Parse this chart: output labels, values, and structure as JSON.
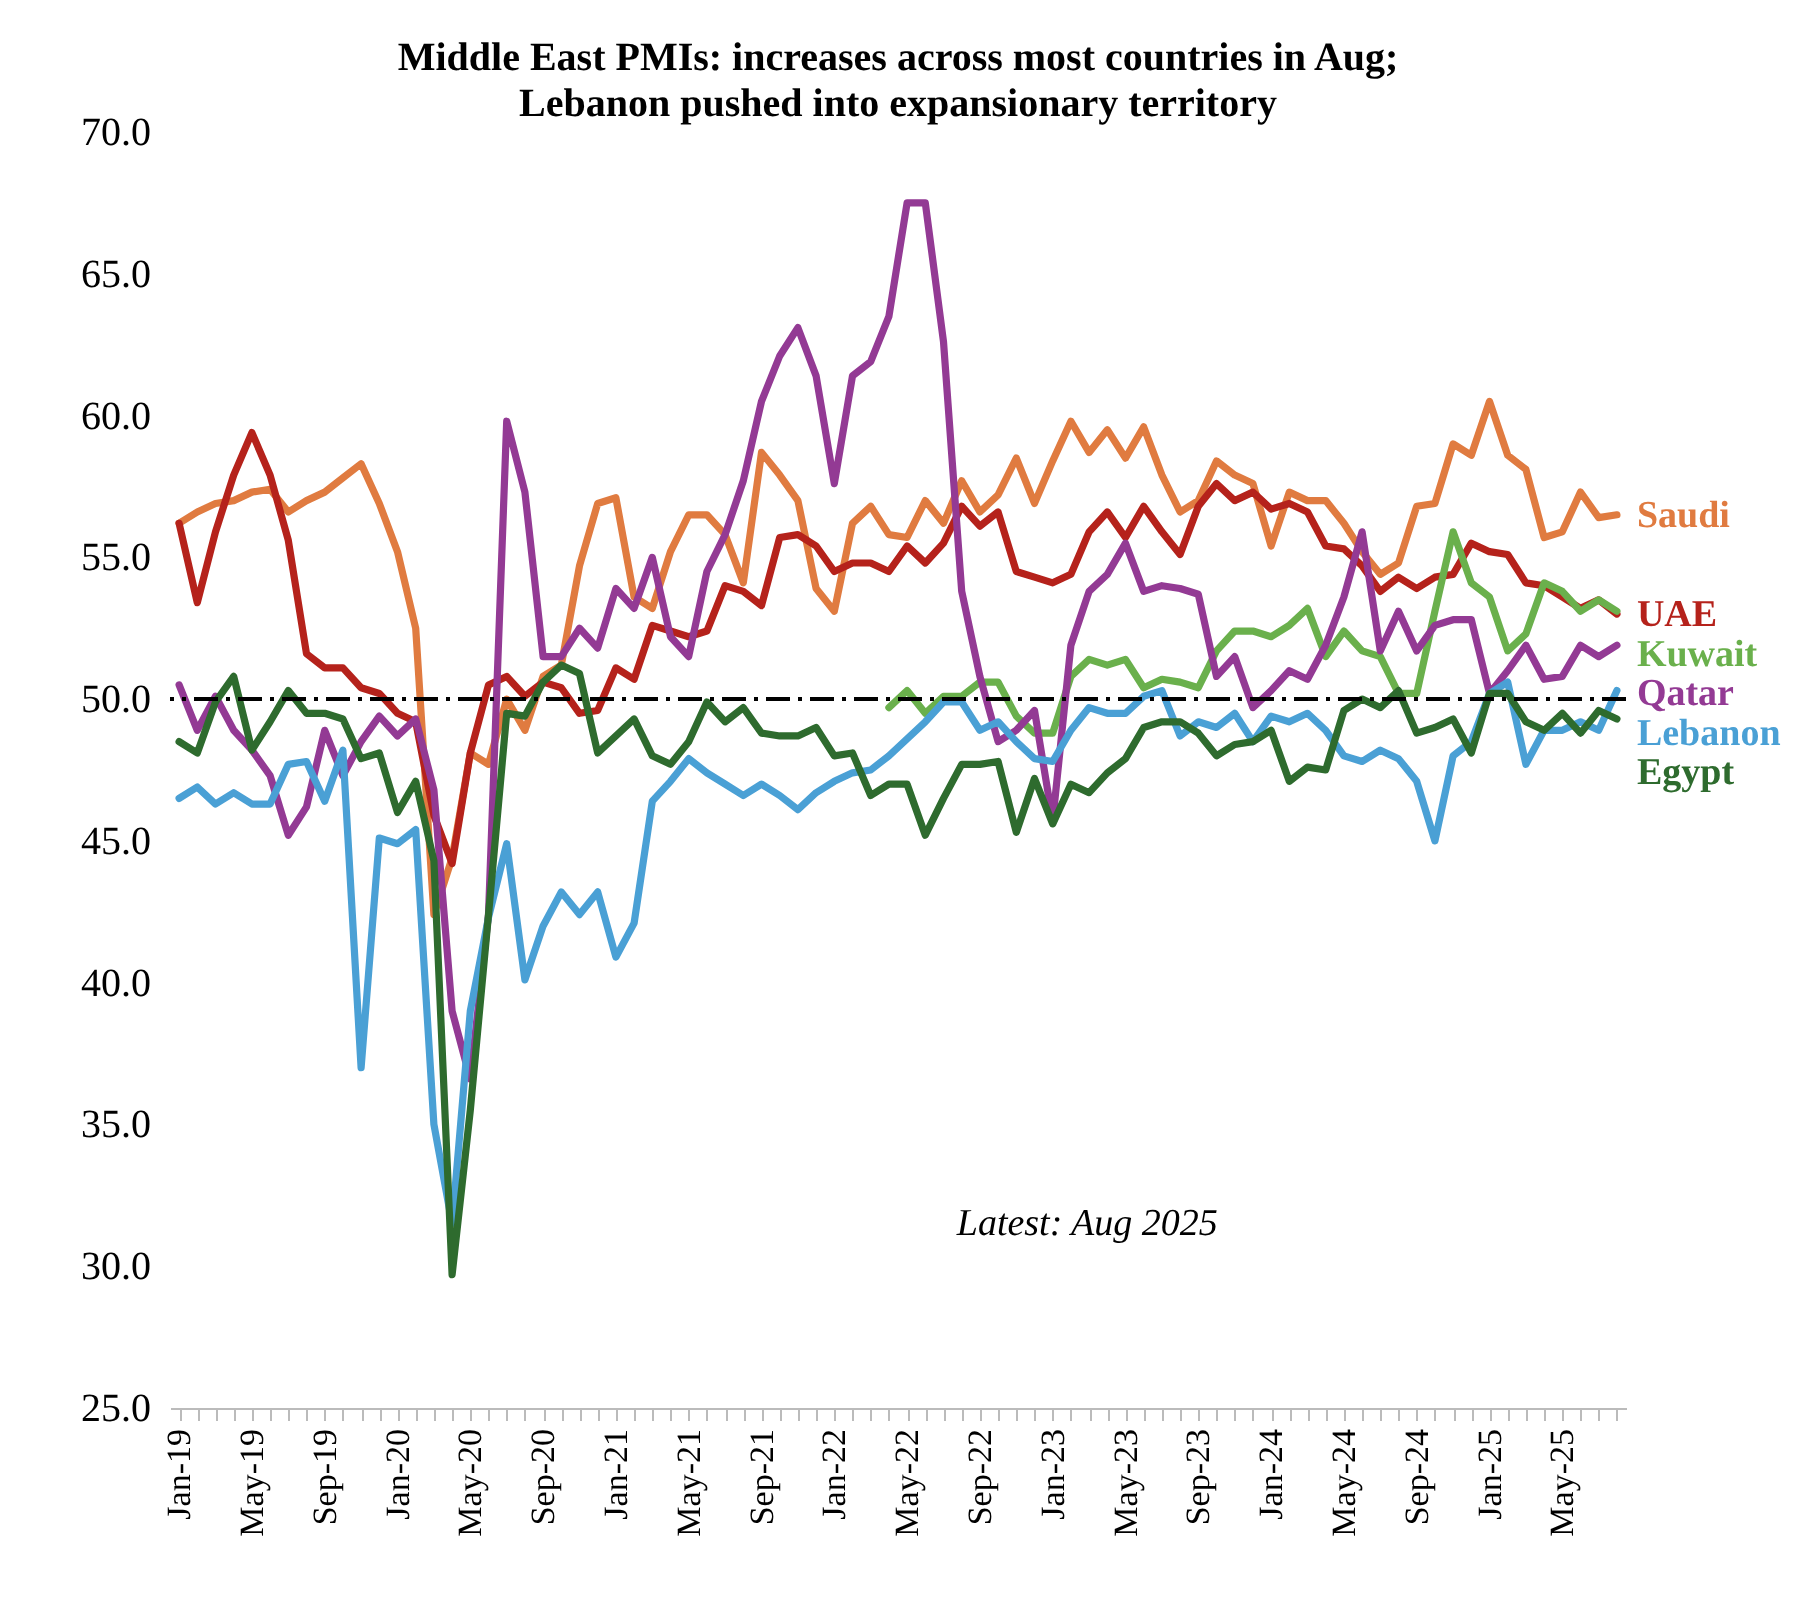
{
  "chart_data": {
    "type": "line",
    "title": "Middle East PMIs: increases across most countries in Aug;\nLebanon pushed into expansionary territory",
    "categories": [
      "Jan-19",
      null,
      null,
      null,
      "May-19",
      null,
      null,
      null,
      "Sep-19",
      null,
      null,
      null,
      "Jan-20",
      null,
      null,
      null,
      "May-20",
      null,
      null,
      null,
      "Sep-20",
      null,
      null,
      null,
      "Jan-21",
      null,
      null,
      null,
      "May-21",
      null,
      null,
      null,
      "Sep-21",
      null,
      null,
      null,
      "Jan-22",
      null,
      null,
      null,
      "May-22",
      null,
      null,
      null,
      "Sep-22",
      null,
      null,
      null,
      "Jan-23",
      null,
      null,
      null,
      "May-23",
      null,
      null,
      null,
      "Sep-23",
      null,
      null,
      null,
      "Jan-24",
      null,
      null,
      null,
      "May-24",
      null,
      null,
      null,
      "Sep-24",
      null,
      null,
      null,
      "Jan-25",
      null,
      null,
      null,
      "May-25",
      null,
      null,
      null
    ],
    "ylim": [
      25,
      70
    ],
    "yticks": [
      {
        "value": 25,
        "label": "25.0"
      },
      {
        "value": 30,
        "label": "30.0"
      },
      {
        "value": 35,
        "label": "35.0"
      },
      {
        "value": 40,
        "label": "40.0"
      },
      {
        "value": 45,
        "label": "45.0"
      },
      {
        "value": 50,
        "label": "50.0"
      },
      {
        "value": 55,
        "label": "55.0"
      },
      {
        "value": 60,
        "label": "60.0"
      },
      {
        "value": 65,
        "label": "65.0"
      },
      {
        "value": 70,
        "label": "70.0"
      }
    ],
    "ref_lines": [
      {
        "axis": "y",
        "value": 50,
        "color": "#000000",
        "line_style": "dashdot"
      }
    ],
    "annotations": [
      "Latest: Aug 2025"
    ],
    "series": [
      {
        "name": "Saudi",
        "color": "#e07b40",
        "values": [
          56.2,
          56.6,
          56.9,
          57.0,
          57.3,
          57.4,
          56.6,
          57.0,
          57.3,
          57.8,
          58.3,
          56.9,
          55.2,
          52.5,
          42.4,
          44.4,
          48.1,
          47.7,
          50.0,
          48.9,
          50.8,
          51.2,
          54.7,
          56.9,
          57.1,
          53.6,
          53.2,
          55.2,
          56.5,
          56.5,
          55.8,
          54.1,
          58.7,
          57.9,
          57.0,
          53.9,
          53.1,
          56.2,
          56.8,
          55.8,
          55.7,
          57.0,
          56.2,
          57.7,
          56.6,
          57.2,
          58.5,
          56.9,
          58.4,
          59.8,
          58.7,
          59.5,
          58.5,
          59.6,
          57.9,
          56.6,
          57.0,
          58.4,
          57.9,
          57.6,
          55.4,
          57.3,
          57.0,
          57.0,
          56.2,
          55.2,
          54.4,
          54.8,
          56.8,
          56.9,
          59.0,
          58.6,
          60.5,
          58.6,
          58.1,
          55.7,
          55.9,
          57.3,
          56.4,
          56.5
        ]
      },
      {
        "name": "UAE",
        "color": "#b5221b",
        "values": [
          56.2,
          53.4,
          55.9,
          57.9,
          59.4,
          57.9,
          55.6,
          51.6,
          51.1,
          51.1,
          50.4,
          50.2,
          49.5,
          49.2,
          45.9,
          44.2,
          48.1,
          50.5,
          50.8,
          50.1,
          50.6,
          50.4,
          49.5,
          49.6,
          51.1,
          50.7,
          52.6,
          52.4,
          52.2,
          52.4,
          54.0,
          53.8,
          53.3,
          55.7,
          55.8,
          55.4,
          54.5,
          54.8,
          54.8,
          54.5,
          55.4,
          54.8,
          55.5,
          56.8,
          56.1,
          56.6,
          54.5,
          54.3,
          54.1,
          54.4,
          55.9,
          56.6,
          55.7,
          56.8,
          55.9,
          55.1,
          56.8,
          57.6,
          57.0,
          57.3,
          56.7,
          56.9,
          56.6,
          55.4,
          55.3,
          54.7,
          53.8,
          54.3,
          53.9,
          54.3,
          54.4,
          55.5,
          55.2,
          55.1,
          54.1,
          54.0,
          53.6,
          53.2,
          53.5,
          53.0
        ]
      },
      {
        "name": "Kuwait",
        "color": "#6ab04c",
        "values": [
          null,
          null,
          null,
          null,
          null,
          null,
          null,
          null,
          null,
          null,
          null,
          null,
          null,
          null,
          null,
          null,
          null,
          null,
          null,
          null,
          null,
          null,
          null,
          null,
          null,
          null,
          null,
          null,
          null,
          null,
          null,
          null,
          null,
          null,
          null,
          null,
          null,
          null,
          null,
          49.7,
          50.3,
          49.5,
          50.1,
          50.1,
          50.6,
          50.6,
          49.4,
          48.8,
          48.8,
          50.8,
          51.4,
          51.2,
          51.4,
          50.4,
          50.7,
          50.6,
          50.4,
          51.7,
          52.4,
          52.4,
          52.2,
          52.6,
          53.2,
          51.5,
          52.4,
          51.7,
          51.5,
          50.2,
          50.2,
          53.1,
          55.9,
          54.1,
          53.6,
          51.7,
          52.3,
          54.1,
          53.8,
          53.1,
          53.5,
          53.1
        ]
      },
      {
        "name": "Qatar",
        "color": "#933a94",
        "values": [
          50.5,
          48.9,
          50.1,
          48.9,
          48.2,
          47.3,
          45.2,
          46.2,
          48.9,
          47.3,
          48.5,
          49.4,
          48.7,
          49.3,
          46.8,
          39.0,
          36.6,
          42.4,
          59.8,
          57.3,
          51.5,
          51.5,
          52.5,
          51.8,
          53.9,
          53.2,
          55.0,
          52.2,
          51.5,
          54.5,
          55.8,
          57.7,
          60.5,
          62.1,
          63.1,
          61.4,
          57.6,
          61.4,
          61.9,
          63.5,
          67.5,
          67.5,
          62.6,
          53.8,
          50.8,
          48.5,
          48.9,
          49.6,
          45.7,
          51.9,
          53.8,
          54.4,
          55.5,
          53.8,
          54.0,
          53.9,
          53.7,
          50.8,
          51.5,
          49.7,
          50.3,
          51.0,
          50.7,
          51.9,
          53.6,
          55.9,
          51.7,
          53.1,
          51.7,
          52.6,
          52.8,
          52.8,
          50.2,
          51.0,
          51.9,
          50.7,
          50.8,
          51.9,
          51.5,
          51.9
        ]
      },
      {
        "name": "Lebanon",
        "color": "#4aa0d5",
        "values": [
          46.5,
          46.9,
          46.3,
          46.7,
          46.3,
          46.3,
          47.7,
          47.8,
          46.4,
          48.2,
          37.0,
          45.1,
          44.9,
          45.4,
          35.0,
          31.5,
          39.0,
          42.3,
          44.9,
          40.1,
          42.0,
          43.2,
          42.4,
          43.2,
          40.9,
          42.1,
          46.4,
          47.1,
          47.9,
          47.4,
          47.0,
          46.6,
          47.0,
          46.6,
          46.1,
          46.7,
          47.1,
          47.4,
          47.5,
          48.0,
          48.6,
          49.2,
          49.9,
          49.9,
          48.9,
          49.2,
          48.5,
          47.9,
          47.8,
          48.9,
          49.7,
          49.5,
          49.5,
          50.1,
          50.3,
          48.7,
          49.2,
          49.0,
          49.5,
          48.5,
          49.4,
          49.2,
          49.5,
          48.9,
          48.0,
          47.8,
          48.2,
          47.9,
          47.1,
          45.0,
          48.0,
          48.5,
          50.2,
          50.6,
          47.7,
          48.9,
          48.9,
          49.2,
          48.9,
          50.3
        ]
      },
      {
        "name": "Egypt",
        "color": "#2e6b2e",
        "values": [
          48.5,
          48.1,
          49.9,
          50.8,
          48.2,
          49.2,
          50.3,
          49.5,
          49.5,
          49.3,
          47.9,
          48.1,
          46.0,
          47.1,
          44.3,
          29.7,
          35.5,
          42.4,
          49.5,
          49.4,
          50.6,
          51.2,
          50.9,
          48.1,
          48.7,
          49.3,
          48.0,
          47.7,
          48.5,
          49.9,
          49.2,
          49.7,
          48.8,
          48.7,
          48.7,
          49.0,
          48.0,
          48.1,
          46.6,
          47.0,
          47.0,
          45.2,
          46.5,
          47.7,
          47.7,
          47.8,
          45.3,
          47.2,
          45.6,
          47.0,
          46.7,
          47.4,
          47.9,
          49.0,
          49.2,
          49.2,
          48.8,
          48.0,
          48.4,
          48.5,
          48.9,
          47.1,
          47.6,
          47.5,
          49.6,
          50.0,
          49.7,
          50.3,
          48.8,
          49.0,
          49.3,
          48.1,
          50.2,
          50.2,
          49.2,
          48.9,
          49.5,
          48.8,
          49.6,
          49.3
        ]
      }
    ]
  }
}
